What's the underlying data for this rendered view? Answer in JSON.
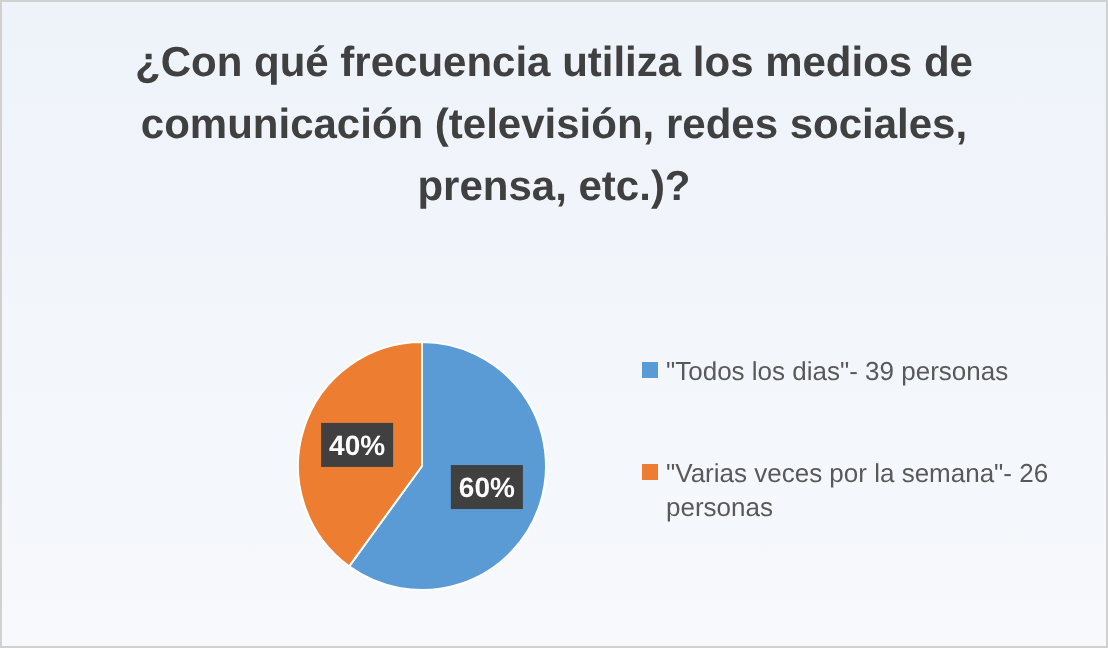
{
  "chart_data": {
    "type": "pie",
    "title": "¿Con qué frecuencia utiliza los medios de comunicación (televisión, redes sociales, prensa, etc.)?",
    "categories": [
      "\"Todos los dias\"- 39 personas",
      "\"Varias veces por la semana\"- 26 personas"
    ],
    "values": [
      60,
      40
    ],
    "value_labels": [
      "60%",
      "40%"
    ],
    "colors": [
      "#5b9bd5",
      "#ed7d31"
    ],
    "legend": "right"
  }
}
